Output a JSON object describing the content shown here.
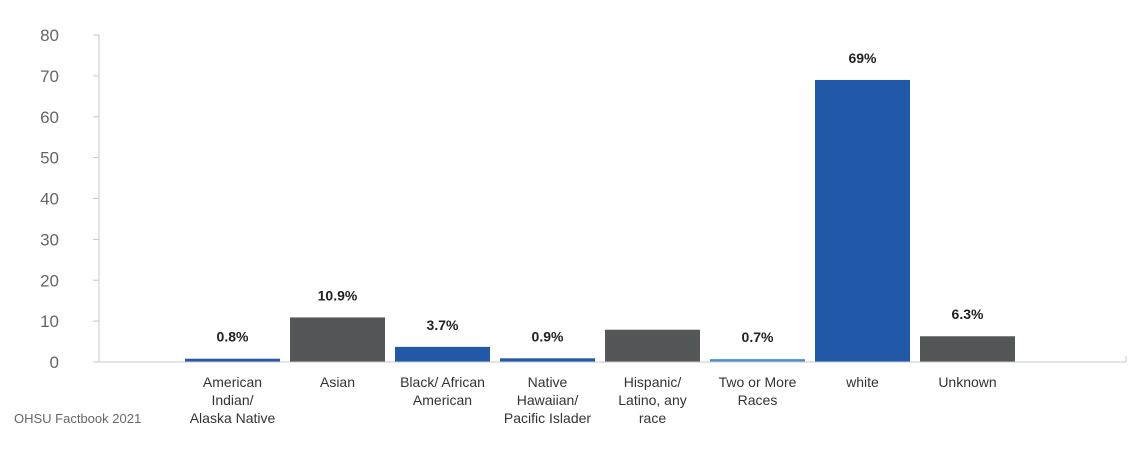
{
  "source_note": "OHSU Factbook 2021",
  "chart_data": {
    "type": "bar",
    "categories": [
      [
        "American",
        "Indian/",
        "Alaska Native"
      ],
      [
        "Asian"
      ],
      [
        "Black/ African",
        "American"
      ],
      [
        "Native",
        "Hawaiian/",
        "Pacific Islader"
      ],
      [
        "Hispanic/",
        "Latino, any",
        "race"
      ],
      [
        "Two or More",
        "Races"
      ],
      [
        "white"
      ],
      [
        "Unknown"
      ]
    ],
    "values": [
      0.8,
      10.9,
      3.7,
      0.9,
      7.9,
      0.7,
      69,
      6.3
    ],
    "data_labels": [
      "0.8%",
      "10.9%",
      "3.7%",
      "0.9%",
      "",
      "0.7%",
      "69%",
      "6.3%"
    ],
    "colors": [
      "#2159a8",
      "#545758",
      "#2159a8",
      "#2159a8",
      "#545758",
      "#4a90d0",
      "#2159a8",
      "#545758"
    ],
    "ylim": [
      0,
      80
    ],
    "yticks": [
      0,
      10,
      20,
      30,
      40,
      50,
      60,
      70,
      80
    ],
    "grid": false,
    "axis_color": "#c8c8c8"
  }
}
